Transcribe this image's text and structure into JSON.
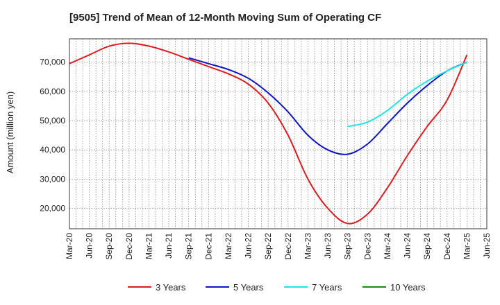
{
  "chart_data": {
    "type": "line",
    "title": "[9505]  Trend of Mean of 12-Month Moving Sum of Operating CF",
    "xlabel": "",
    "ylabel": "Amount (million yen)",
    "ylim": [
      13000,
      78000
    ],
    "yticks": [
      20000,
      30000,
      40000,
      50000,
      60000,
      70000
    ],
    "ytick_labels": [
      "20,000",
      "30,000",
      "40,000",
      "50,000",
      "60,000",
      "70,000"
    ],
    "x_tick_labels": [
      "Mar-20",
      "Jun-20",
      "Sep-20",
      "Dec-20",
      "Mar-21",
      "Jun-21",
      "Sep-21",
      "Dec-21",
      "Mar-22",
      "Jun-22",
      "Sep-22",
      "Dec-22",
      "Mar-23",
      "Jun-23",
      "Sep-23",
      "Dec-23",
      "Mar-24",
      "Jun-24",
      "Sep-24",
      "Dec-24",
      "Mar-25",
      "Jun-25"
    ],
    "grid": true,
    "legend_position": "bottom",
    "series": [
      {
        "name": "3 Years",
        "color": "#e31a1c",
        "x": [
          0,
          1,
          2,
          3,
          4,
          5,
          6,
          7,
          8,
          9,
          10,
          11,
          12,
          13,
          14,
          15,
          16,
          17,
          18,
          19,
          20
        ],
        "values": [
          69500,
          72500,
          75500,
          76500,
          75500,
          73500,
          71000,
          68500,
          66000,
          62500,
          56000,
          45000,
          30000,
          20000,
          14800,
          18000,
          27000,
          38000,
          48000,
          57000,
          72500
        ]
      },
      {
        "name": "5 Years",
        "color": "#0a14c8",
        "x": [
          6,
          7,
          8,
          9,
          10,
          11,
          12,
          13,
          14,
          15,
          16,
          17,
          18,
          19,
          20
        ],
        "values": [
          71500,
          69500,
          67500,
          64500,
          59500,
          53000,
          45000,
          40000,
          38500,
          42000,
          49000,
          56000,
          62000,
          67000,
          70000
        ]
      },
      {
        "name": "7 Years",
        "color": "#1ee6e6",
        "x": [
          14,
          15,
          16,
          17,
          18,
          19,
          20
        ],
        "values": [
          48000,
          49500,
          53500,
          59000,
          63500,
          67000,
          70000
        ]
      },
      {
        "name": "10 Years",
        "color": "#1a8a1a",
        "x": [],
        "values": []
      }
    ]
  }
}
